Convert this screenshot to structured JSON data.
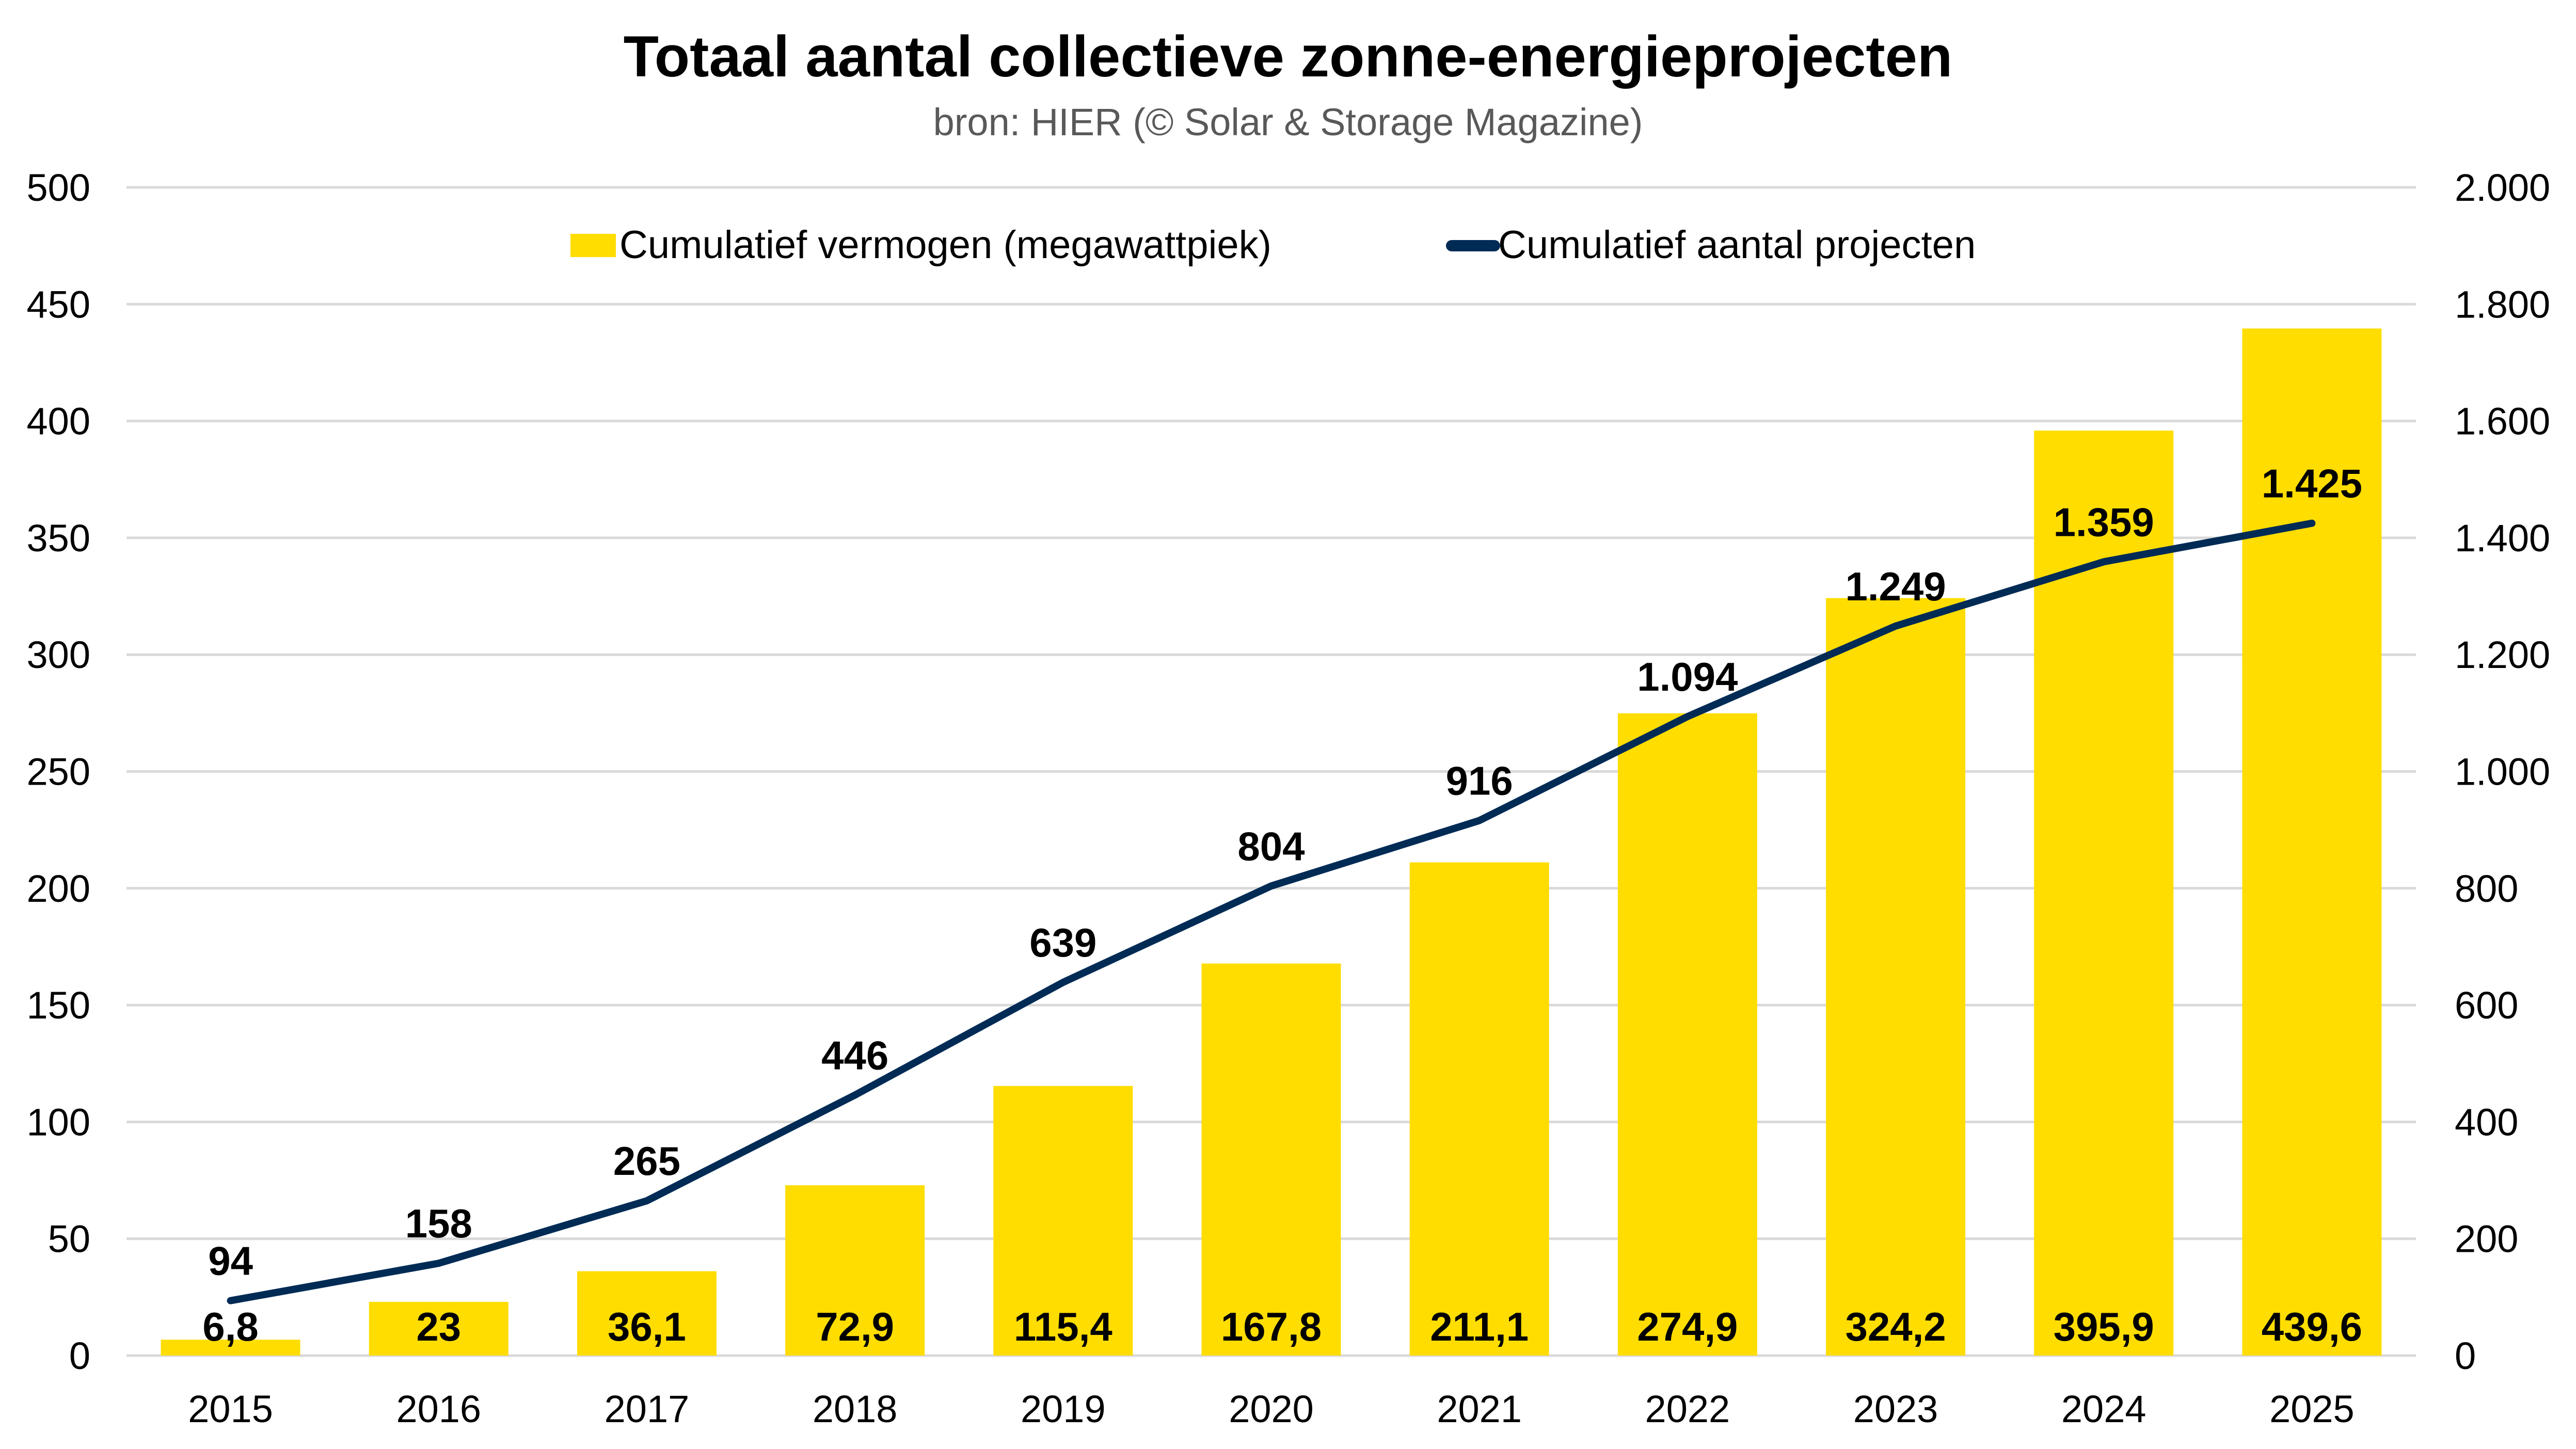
{
  "chart_data": {
    "type": "bar+line",
    "title": "Totaal aantal collectieve zonne-energieprojecten",
    "subtitle": "bron: HIER (© Solar & Storage Magazine)",
    "categories": [
      "2015",
      "2016",
      "2017",
      "2018",
      "2019",
      "2020",
      "2021",
      "2022",
      "2023",
      "2024",
      "2025"
    ],
    "series": [
      {
        "name": "Cumulatief vermogen (megawattpiek)",
        "type": "bar",
        "axis": "left",
        "color": "#FFDD00",
        "values": [
          6.8,
          23,
          36.1,
          72.9,
          115.4,
          167.8,
          211.1,
          274.9,
          324.2,
          395.9,
          439.6
        ],
        "labels": [
          "6,8",
          "23",
          "36,1",
          "72,9",
          "115,4",
          "167,8",
          "211,1",
          "274,9",
          "324,2",
          "395,9",
          "439,6"
        ]
      },
      {
        "name": "Cumulatief aantal projecten",
        "type": "line",
        "axis": "right",
        "color": "#002B55",
        "values": [
          94,
          158,
          265,
          446,
          639,
          804,
          916,
          1094,
          1249,
          1359,
          1425
        ],
        "labels": [
          "94",
          "158",
          "265",
          "446",
          "639",
          "804",
          "916",
          "1.094",
          "1.249",
          "1.359",
          "1.425"
        ]
      }
    ],
    "left_axis": {
      "ylim": [
        0,
        500
      ],
      "ticks": [
        0,
        50,
        100,
        150,
        200,
        250,
        300,
        350,
        400,
        450,
        500
      ],
      "tick_labels": [
        "0",
        "50",
        "100",
        "150",
        "200",
        "250",
        "300",
        "350",
        "400",
        "450",
        "500"
      ]
    },
    "right_axis": {
      "ylim": [
        0,
        2000
      ],
      "ticks": [
        0,
        200,
        400,
        600,
        800,
        1000,
        1200,
        1400,
        1600,
        1800,
        2000
      ],
      "tick_labels": [
        "0",
        "200",
        "400",
        "600",
        "800",
        "1.000",
        "1.200",
        "1.400",
        "1.600",
        "1.800",
        "2.000"
      ]
    },
    "xlabel": "",
    "ylabel": "",
    "grid": true,
    "legend_position": "top-center"
  }
}
